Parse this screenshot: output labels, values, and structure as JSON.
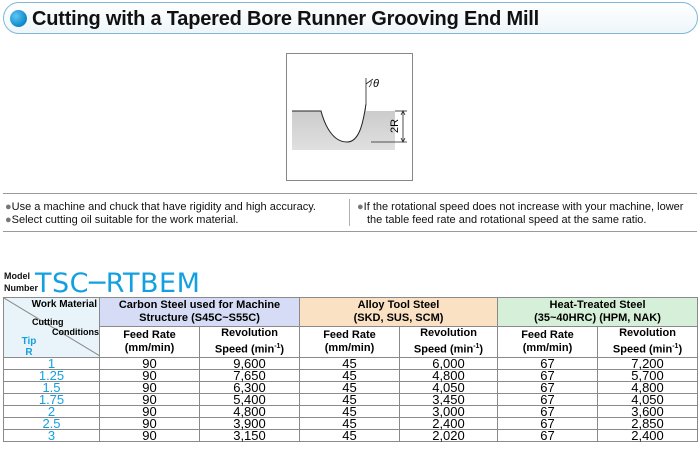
{
  "header": {
    "title": "Cutting with a Tapered Bore Runner Grooving End Mill"
  },
  "figure": {
    "angle_label": "θ",
    "dimension_label": "2R"
  },
  "notes": {
    "left": [
      "Use a machine and chuck that have rigidity and high accuracy.",
      "Select cutting oil suitable for the work material."
    ],
    "right_line1": "If the rotational speed does not increase with your machine, lower",
    "right_line2": "the table feed rate and rotational speed at the same ratio.",
    "bullet": "●"
  },
  "model": {
    "label_line1": "Model",
    "label_line2": "Number",
    "number": "TSC─RTBEM"
  },
  "table": {
    "corner": {
      "work_material": "Work Material",
      "cutting": "Cutting",
      "conditions": "Conditions",
      "tip": "Tip",
      "r": "R"
    },
    "materials": [
      {
        "line1": "Carbon Steel used for Machine",
        "line2": "Structure (S45C~S55C)"
      },
      {
        "line1": "Alloy Tool Steel",
        "line2": "(SKD, SUS, SCM)"
      },
      {
        "line1": "Heat-Treated Steel",
        "line2": "(35~40HRC) (HPM, NAK)"
      }
    ],
    "sub_headers": {
      "feed_line1": "Feed Rate",
      "feed_line2": "(mm/min)",
      "rev_line1": "Revolution",
      "rev_line2_prefix": "Speed (min",
      "rev_line2_sup": "-1",
      "rev_line2_suffix": ")"
    },
    "colors": {
      "carbon": "#d6dcf5",
      "alloy": "#fbe1c4",
      "heat": "#d6efd8",
      "accent": "#14a0e0"
    },
    "rows": [
      {
        "r": "1",
        "c_feed": "90",
        "c_rev": "9,600",
        "a_feed": "45",
        "a_rev": "6,000",
        "h_feed": "67",
        "h_rev": "7,200"
      },
      {
        "r": "1.25",
        "c_feed": "90",
        "c_rev": "7,650",
        "a_feed": "45",
        "a_rev": "4,800",
        "h_feed": "67",
        "h_rev": "5,700"
      },
      {
        "r": "1.5",
        "c_feed": "90",
        "c_rev": "6,300",
        "a_feed": "45",
        "a_rev": "4,050",
        "h_feed": "67",
        "h_rev": "4,800"
      },
      {
        "r": "1.75",
        "c_feed": "90",
        "c_rev": "5,400",
        "a_feed": "45",
        "a_rev": "3,450",
        "h_feed": "67",
        "h_rev": "4,050"
      },
      {
        "r": "2",
        "c_feed": "90",
        "c_rev": "4,800",
        "a_feed": "45",
        "a_rev": "3,000",
        "h_feed": "67",
        "h_rev": "3,600"
      },
      {
        "r": "2.5",
        "c_feed": "90",
        "c_rev": "3,900",
        "a_feed": "45",
        "a_rev": "2,400",
        "h_feed": "67",
        "h_rev": "2,850"
      },
      {
        "r": "3",
        "c_feed": "90",
        "c_rev": "3,150",
        "a_feed": "45",
        "a_rev": "2,020",
        "h_feed": "67",
        "h_rev": "2,400"
      }
    ]
  }
}
